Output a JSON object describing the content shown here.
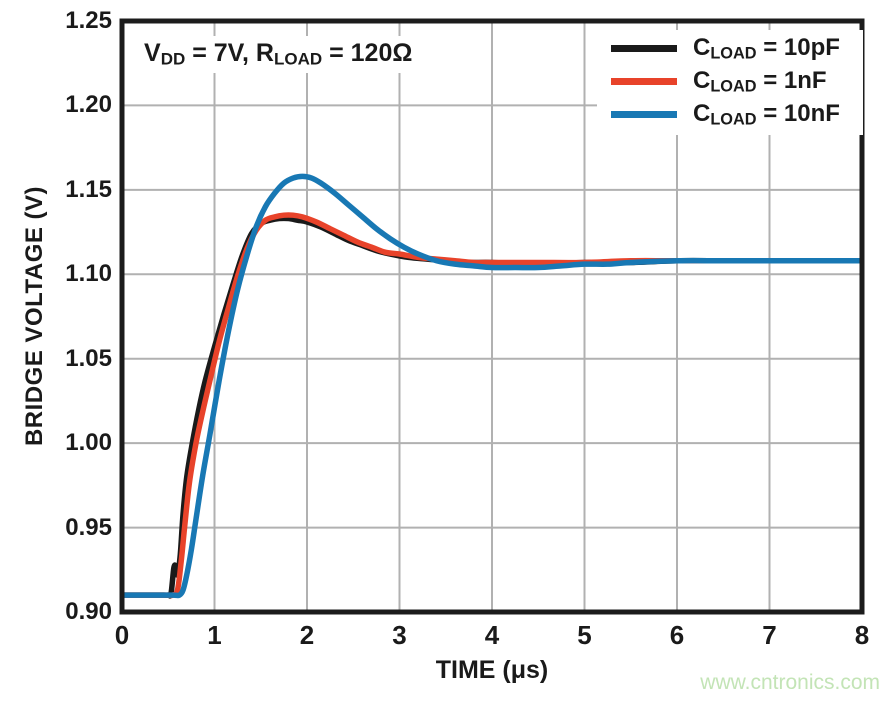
{
  "watermark": {
    "text": "www.cntronics.com",
    "color": "#c3e4b6"
  },
  "annotation": {
    "pre": "V",
    "sub1": "DD",
    "mid": " = 7V, R",
    "sub2": "LOAD",
    "post": " = 120Ω"
  },
  "chart_data": {
    "type": "line",
    "title": "",
    "xlabel": "TIME (μs)",
    "ylabel": "BRIDGE VOLTAGE (V)",
    "xlim": [
      0,
      8
    ],
    "ylim": [
      0.9,
      1.25
    ],
    "grid": true,
    "grid_color": "#b1b1b1",
    "frame_color": "#1c1c1c",
    "legend_position": "top-right",
    "x_ticks": [
      0,
      1,
      2,
      3,
      4,
      5,
      6,
      7,
      8
    ],
    "y_ticks": [
      {
        "v": 0.9,
        "label": "0.90"
      },
      {
        "v": 0.95,
        "label": "0.95"
      },
      {
        "v": 1.0,
        "label": "1.00"
      },
      {
        "v": 1.05,
        "label": "1.05"
      },
      {
        "v": 1.1,
        "label": "1.10"
      },
      {
        "v": 1.15,
        "label": "1.15"
      },
      {
        "v": 1.2,
        "label": "1.20"
      },
      {
        "v": 1.25,
        "label": "1.25"
      }
    ],
    "series": [
      {
        "name": "CLOAD = 10pF",
        "legend": {
          "pre": "C",
          "sub": "LOAD",
          "post": " = 10pF"
        },
        "color": "#1a1a1a",
        "points": [
          [
            0,
            0.91
          ],
          [
            0.3,
            0.91
          ],
          [
            0.45,
            0.91
          ],
          [
            0.5,
            0.91
          ],
          [
            0.53,
            0.911
          ],
          [
            0.56,
            0.926
          ],
          [
            0.58,
            0.927
          ],
          [
            0.6,
            0.922
          ],
          [
            0.63,
            0.934
          ],
          [
            0.66,
            0.958
          ],
          [
            0.7,
            0.98
          ],
          [
            0.76,
            1.0
          ],
          [
            0.83,
            1.02
          ],
          [
            0.9,
            1.037
          ],
          [
            1.0,
            1.057
          ],
          [
            1.1,
            1.076
          ],
          [
            1.2,
            1.094
          ],
          [
            1.3,
            1.111
          ],
          [
            1.4,
            1.124
          ],
          [
            1.5,
            1.13
          ],
          [
            1.6,
            1.132
          ],
          [
            1.7,
            1.133
          ],
          [
            1.8,
            1.133
          ],
          [
            1.9,
            1.132
          ],
          [
            2.0,
            1.131
          ],
          [
            2.15,
            1.128
          ],
          [
            2.3,
            1.124
          ],
          [
            2.45,
            1.12
          ],
          [
            2.6,
            1.117
          ],
          [
            2.75,
            1.114
          ],
          [
            2.9,
            1.112
          ],
          [
            3.1,
            1.11
          ],
          [
            3.3,
            1.109
          ],
          [
            3.5,
            1.108
          ],
          [
            3.75,
            1.107
          ],
          [
            4.0,
            1.107
          ],
          [
            4.5,
            1.106
          ],
          [
            5.0,
            1.107
          ],
          [
            5.5,
            1.107
          ],
          [
            6.0,
            1.108
          ],
          [
            6.5,
            1.108
          ],
          [
            7.0,
            1.108
          ],
          [
            7.5,
            1.108
          ],
          [
            8.0,
            1.108
          ]
        ]
      },
      {
        "name": "CLOAD = 1nF",
        "legend": {
          "pre": "C",
          "sub": "LOAD",
          "post": " = 1nF"
        },
        "color": "#e8432a",
        "points": [
          [
            0,
            0.91
          ],
          [
            0.3,
            0.91
          ],
          [
            0.5,
            0.91
          ],
          [
            0.55,
            0.91
          ],
          [
            0.6,
            0.913
          ],
          [
            0.64,
            0.93
          ],
          [
            0.68,
            0.952
          ],
          [
            0.73,
            0.977
          ],
          [
            0.8,
            1.0
          ],
          [
            0.87,
            1.018
          ],
          [
            0.95,
            1.037
          ],
          [
            1.05,
            1.06
          ],
          [
            1.15,
            1.08
          ],
          [
            1.25,
            1.099
          ],
          [
            1.35,
            1.115
          ],
          [
            1.45,
            1.126
          ],
          [
            1.55,
            1.132
          ],
          [
            1.65,
            1.134
          ],
          [
            1.75,
            1.135
          ],
          [
            1.85,
            1.135
          ],
          [
            1.95,
            1.134
          ],
          [
            2.1,
            1.131
          ],
          [
            2.25,
            1.127
          ],
          [
            2.4,
            1.123
          ],
          [
            2.55,
            1.119
          ],
          [
            2.7,
            1.116
          ],
          [
            2.85,
            1.113
          ],
          [
            3.0,
            1.112
          ],
          [
            3.2,
            1.11
          ],
          [
            3.4,
            1.109
          ],
          [
            3.6,
            1.108
          ],
          [
            3.8,
            1.107
          ],
          [
            4.0,
            1.107
          ],
          [
            4.5,
            1.107
          ],
          [
            5.0,
            1.107
          ],
          [
            5.5,
            1.108
          ],
          [
            6.0,
            1.108
          ],
          [
            7.0,
            1.108
          ],
          [
            8.0,
            1.108
          ]
        ]
      },
      {
        "name": "CLOAD = 10nF",
        "legend": {
          "pre": "C",
          "sub": "LOAD",
          "post": " = 10nF"
        },
        "color": "#1878b4",
        "points": [
          [
            0,
            0.91
          ],
          [
            0.3,
            0.91
          ],
          [
            0.55,
            0.91
          ],
          [
            0.62,
            0.91
          ],
          [
            0.66,
            0.913
          ],
          [
            0.7,
            0.922
          ],
          [
            0.75,
            0.937
          ],
          [
            0.8,
            0.955
          ],
          [
            0.87,
            0.98
          ],
          [
            0.95,
            1.005
          ],
          [
            1.05,
            1.037
          ],
          [
            1.15,
            1.066
          ],
          [
            1.25,
            1.091
          ],
          [
            1.35,
            1.111
          ],
          [
            1.45,
            1.128
          ],
          [
            1.55,
            1.14
          ],
          [
            1.65,
            1.148
          ],
          [
            1.75,
            1.154
          ],
          [
            1.85,
            1.157
          ],
          [
            1.95,
            1.158
          ],
          [
            2.05,
            1.157
          ],
          [
            2.15,
            1.154
          ],
          [
            2.3,
            1.148
          ],
          [
            2.45,
            1.141
          ],
          [
            2.6,
            1.134
          ],
          [
            2.75,
            1.127
          ],
          [
            2.9,
            1.121
          ],
          [
            3.05,
            1.116
          ],
          [
            3.2,
            1.112
          ],
          [
            3.4,
            1.108
          ],
          [
            3.6,
            1.106
          ],
          [
            3.8,
            1.105
          ],
          [
            4.0,
            1.104
          ],
          [
            4.25,
            1.104
          ],
          [
            4.5,
            1.104
          ],
          [
            4.75,
            1.105
          ],
          [
            5.0,
            1.106
          ],
          [
            5.25,
            1.106
          ],
          [
            5.5,
            1.107
          ],
          [
            6.0,
            1.108
          ],
          [
            6.5,
            1.108
          ],
          [
            7.0,
            1.108
          ],
          [
            7.5,
            1.108
          ],
          [
            8.0,
            1.108
          ]
        ]
      }
    ]
  }
}
